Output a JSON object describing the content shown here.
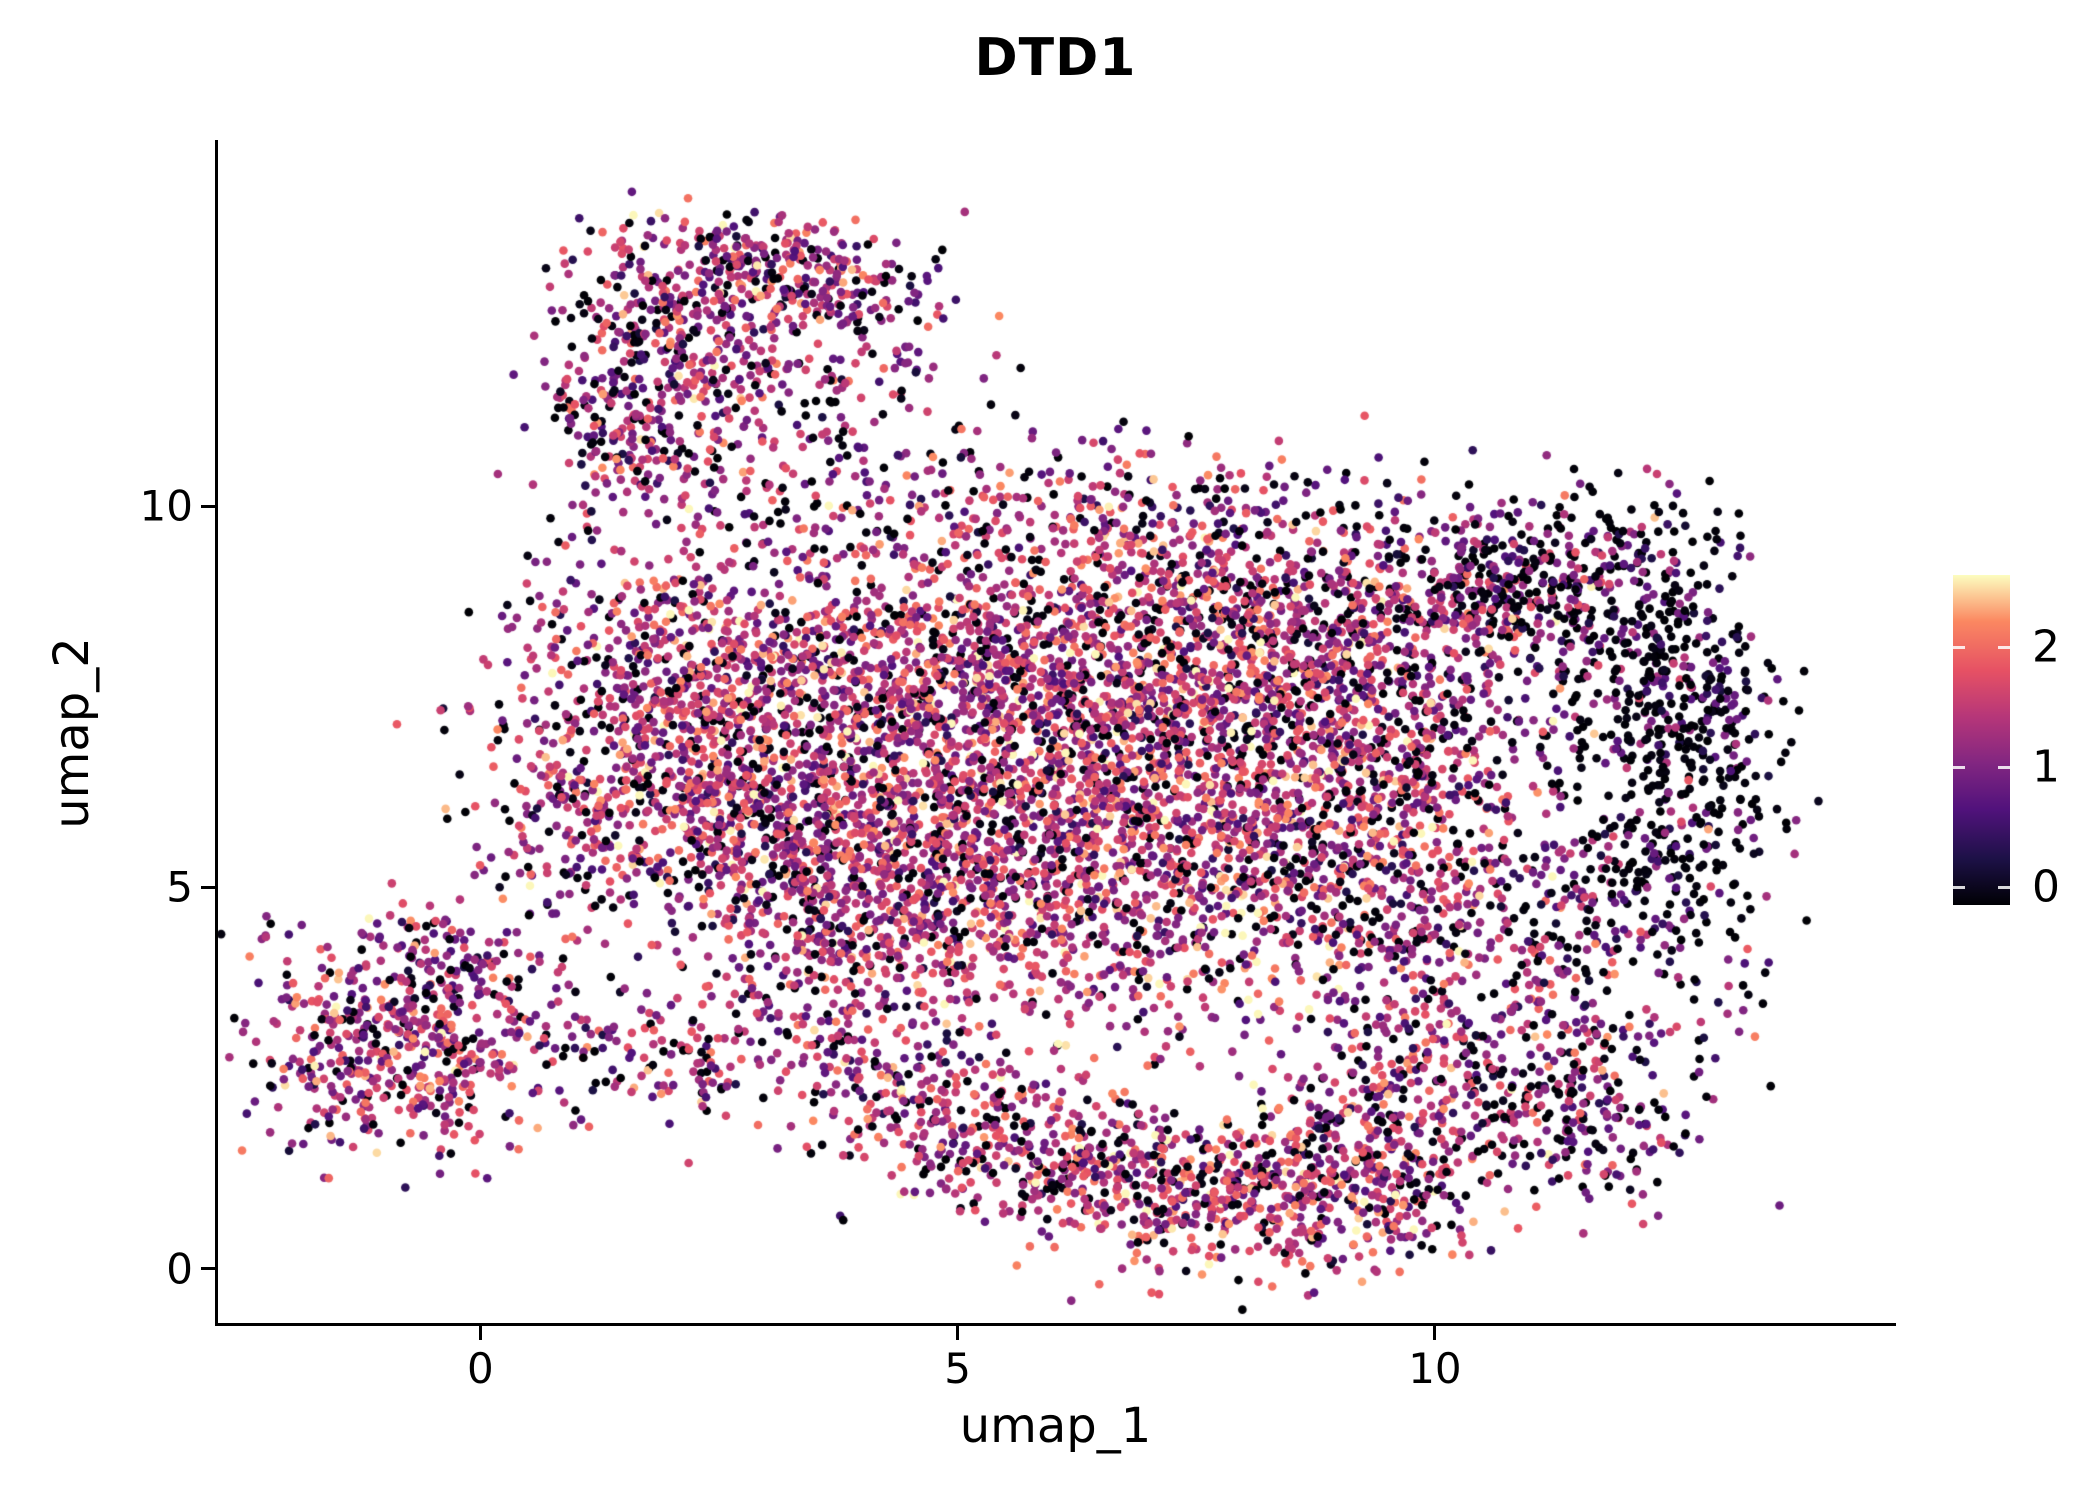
{
  "chart_data": {
    "type": "scatter",
    "title": "DTD1",
    "xlabel": "umap_1",
    "ylabel": "umap_2",
    "xlim": [
      -2.78,
      14.83
    ],
    "ylim": [
      -0.75,
      14.8
    ],
    "xticks": [
      0,
      5,
      10
    ],
    "yticks": [
      0,
      5,
      10
    ],
    "grid": false,
    "point_radius": 4.3,
    "seed": 42,
    "background_color": "#ffffff",
    "axis_color": "#000000",
    "colorbar": {
      "ticks": [
        0,
        1,
        2
      ],
      "tick_labels": [
        "0",
        "1",
        "2"
      ],
      "domain": [
        -0.15,
        2.6
      ],
      "vmax": 2.6,
      "position": "right"
    },
    "colormap_name": "magma",
    "colormap": [
      [
        0.0,
        "#000004"
      ],
      [
        0.14,
        "#1d1147"
      ],
      [
        0.29,
        "#51127c"
      ],
      [
        0.43,
        "#822681"
      ],
      [
        0.57,
        "#b63679"
      ],
      [
        0.71,
        "#e65164"
      ],
      [
        0.86,
        "#fb8861"
      ],
      [
        1.0,
        "#fcfdbf"
      ]
    ],
    "clusters": [
      {
        "cx": -0.85,
        "cy": 2.9,
        "sx": 0.75,
        "sy": 0.75,
        "rot": 0,
        "n": 500,
        "z": 0.12,
        "vm": 1.4,
        "vs": 0.55
      },
      {
        "cx": -0.3,
        "cy": 4.0,
        "sx": 0.5,
        "sy": 0.4,
        "rot": 0,
        "n": 90,
        "z": 0.15,
        "vm": 1.2,
        "vs": 0.5
      },
      {
        "cx": 1.3,
        "cy": 2.9,
        "sx": 0.45,
        "sy": 0.45,
        "rot": 0,
        "n": 70,
        "z": 0.2,
        "vm": 1.3,
        "vs": 0.5
      },
      {
        "cx": 2.3,
        "cy": 2.6,
        "sx": 0.35,
        "sy": 0.3,
        "rot": 0,
        "n": 45,
        "z": 0.2,
        "vm": 1.5,
        "vs": 0.5
      },
      {
        "cx": 1.35,
        "cy": 11.1,
        "sx": 0.35,
        "sy": 0.55,
        "rot": 20,
        "n": 160,
        "z": 0.15,
        "vm": 1.3,
        "vs": 0.55
      },
      {
        "cx": 2.2,
        "cy": 12.2,
        "sx": 0.75,
        "sy": 0.4,
        "rot": -40,
        "n": 280,
        "z": 0.15,
        "vm": 1.4,
        "vs": 0.55
      },
      {
        "cx": 3.1,
        "cy": 13.1,
        "sx": 0.8,
        "sy": 0.35,
        "rot": -15,
        "n": 300,
        "z": 0.18,
        "vm": 1.4,
        "vs": 0.55
      },
      {
        "cx": 2.6,
        "cy": 10.6,
        "sx": 0.8,
        "sy": 0.8,
        "rot": 0,
        "n": 140,
        "z": 0.25,
        "vm": 1.2,
        "vs": 0.55
      },
      {
        "cx": 4.2,
        "cy": 11.6,
        "sx": 0.6,
        "sy": 0.9,
        "rot": 0,
        "n": 90,
        "z": 0.3,
        "vm": 1.1,
        "vs": 0.5
      },
      {
        "cx": 1.8,
        "cy": 7.3,
        "sx": 0.9,
        "sy": 1.1,
        "rot": 0,
        "n": 550,
        "z": 0.15,
        "vm": 1.5,
        "vs": 0.55
      },
      {
        "cx": 3.3,
        "cy": 7.4,
        "sx": 1.1,
        "sy": 1.3,
        "rot": 0,
        "n": 750,
        "z": 0.15,
        "vm": 1.5,
        "vs": 0.55
      },
      {
        "cx": 5.0,
        "cy": 7.0,
        "sx": 1.2,
        "sy": 1.4,
        "rot": 0,
        "n": 850,
        "z": 0.15,
        "vm": 1.5,
        "vs": 0.55
      },
      {
        "cx": 6.6,
        "cy": 7.8,
        "sx": 1.3,
        "sy": 1.2,
        "rot": 0,
        "n": 850,
        "z": 0.15,
        "vm": 1.55,
        "vs": 0.55
      },
      {
        "cx": 8.2,
        "cy": 8.3,
        "sx": 1.3,
        "sy": 1.0,
        "rot": 0,
        "n": 700,
        "z": 0.18,
        "vm": 1.5,
        "vs": 0.55
      },
      {
        "cx": 8.2,
        "cy": 6.0,
        "sx": 1.3,
        "sy": 1.2,
        "rot": 0,
        "n": 750,
        "z": 0.15,
        "vm": 1.6,
        "vs": 0.55
      },
      {
        "cx": 6.2,
        "cy": 5.0,
        "sx": 1.3,
        "sy": 1.1,
        "rot": 0,
        "n": 650,
        "z": 0.15,
        "vm": 1.5,
        "vs": 0.55
      },
      {
        "cx": 4.3,
        "cy": 5.0,
        "sx": 1.0,
        "sy": 0.9,
        "rot": 0,
        "n": 450,
        "z": 0.15,
        "vm": 1.5,
        "vs": 0.55
      },
      {
        "cx": 2.9,
        "cy": 5.6,
        "sx": 0.8,
        "sy": 0.8,
        "rot": 0,
        "n": 300,
        "z": 0.18,
        "vm": 1.4,
        "vs": 0.55
      },
      {
        "cx": 9.7,
        "cy": 7.3,
        "sx": 1.0,
        "sy": 1.1,
        "rot": 0,
        "n": 450,
        "z": 0.25,
        "vm": 1.3,
        "vs": 0.55
      },
      {
        "cx": 10.6,
        "cy": 9.0,
        "sx": 0.9,
        "sy": 0.6,
        "rot": 0,
        "n": 260,
        "z": 0.3,
        "vm": 1.2,
        "vs": 0.55
      },
      {
        "cx": 9.6,
        "cy": 4.6,
        "sx": 0.9,
        "sy": 0.9,
        "rot": 0,
        "n": 280,
        "z": 0.2,
        "vm": 1.4,
        "vs": 0.55
      },
      {
        "cx": 10.4,
        "cy": 2.6,
        "sx": 1.1,
        "sy": 0.9,
        "rot": 0,
        "n": 380,
        "z": 0.2,
        "vm": 1.4,
        "vs": 0.55
      },
      {
        "cx": 11.6,
        "cy": 1.9,
        "sx": 0.6,
        "sy": 0.6,
        "rot": 0,
        "n": 120,
        "z": 0.35,
        "vm": 1.1,
        "vs": 0.5
      },
      {
        "cx": 12.3,
        "cy": 7.8,
        "sx": 0.6,
        "sy": 0.9,
        "rot": 0,
        "n": 300,
        "z": 0.6,
        "vm": 0.8,
        "vs": 0.5
      },
      {
        "cx": 12.9,
        "cy": 6.3,
        "sx": 0.4,
        "sy": 1.0,
        "rot": 0,
        "n": 180,
        "z": 0.6,
        "vm": 0.7,
        "vs": 0.5
      },
      {
        "cx": 12.0,
        "cy": 5.0,
        "sx": 0.6,
        "sy": 0.8,
        "rot": 0,
        "n": 160,
        "z": 0.5,
        "vm": 0.9,
        "vs": 0.5
      },
      {
        "cx": 11.5,
        "cy": 9.3,
        "sx": 0.8,
        "sy": 0.5,
        "rot": 0,
        "n": 160,
        "z": 0.5,
        "vm": 0.9,
        "vs": 0.5
      },
      {
        "cx": 11.0,
        "cy": 3.8,
        "sx": 0.9,
        "sy": 0.9,
        "rot": 0,
        "n": 90,
        "z": 0.4,
        "vm": 1.0,
        "vs": 0.5
      },
      {
        "cx": 4.9,
        "cy": 2.1,
        "sx": 0.9,
        "sy": 0.5,
        "rot": -15,
        "n": 260,
        "z": 0.18,
        "vm": 1.4,
        "vs": 0.55
      },
      {
        "cx": 6.6,
        "cy": 1.3,
        "sx": 1.1,
        "sy": 0.45,
        "rot": -8,
        "n": 340,
        "z": 0.18,
        "vm": 1.5,
        "vs": 0.55
      },
      {
        "cx": 8.2,
        "cy": 0.9,
        "sx": 1.0,
        "sy": 0.5,
        "rot": 0,
        "n": 380,
        "z": 0.18,
        "vm": 1.6,
        "vs": 0.55
      },
      {
        "cx": 9.3,
        "cy": 1.6,
        "sx": 0.7,
        "sy": 0.6,
        "rot": 0,
        "n": 220,
        "z": 0.2,
        "vm": 1.5,
        "vs": 0.55
      },
      {
        "cx": 3.6,
        "cy": 3.4,
        "sx": 0.8,
        "sy": 0.7,
        "rot": 0,
        "n": 120,
        "z": 0.25,
        "vm": 1.3,
        "vs": 0.55
      },
      {
        "cx": 0.9,
        "cy": 6.0,
        "sx": 0.5,
        "sy": 0.8,
        "rot": 0,
        "n": 120,
        "z": 0.2,
        "vm": 1.4,
        "vs": 0.55
      },
      {
        "cx": 6.5,
        "cy": 9.9,
        "sx": 1.8,
        "sy": 0.5,
        "rot": 0,
        "n": 150,
        "z": 0.25,
        "vm": 1.3,
        "vs": 0.55
      }
    ]
  }
}
